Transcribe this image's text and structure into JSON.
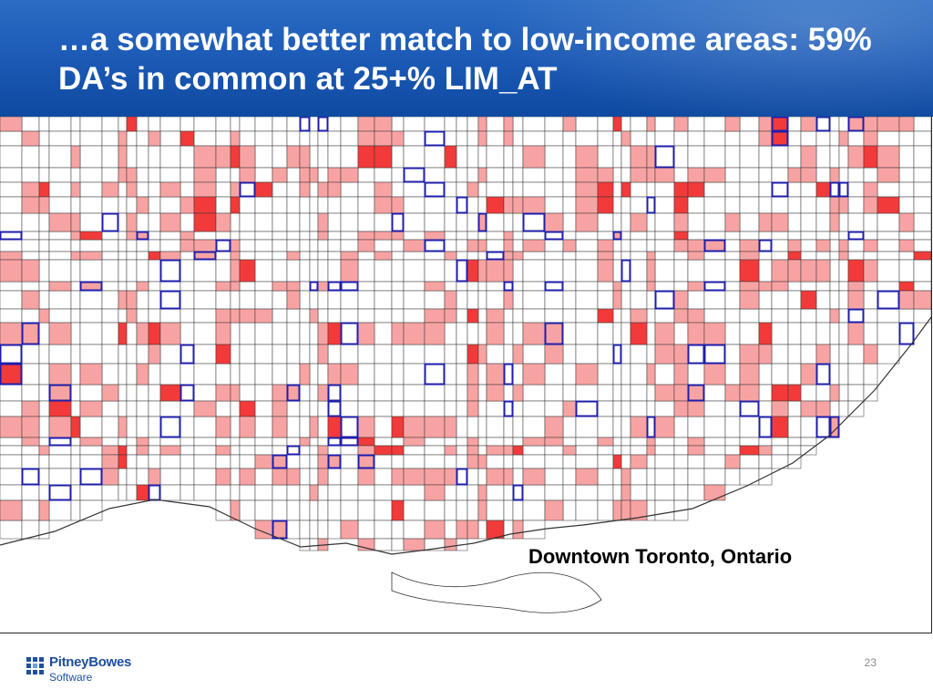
{
  "slide": {
    "title": "…a somewhat better match to low-income areas: 59% DA’s in common at 25+% LIM_AT",
    "map_caption": "Downtown Toronto, Ontario",
    "page_number": "23"
  },
  "logo": {
    "brand": "PitneyBowes",
    "sub": "Software"
  },
  "map": {
    "colors": {
      "light_fill": "#f8a3a3",
      "dark_fill": "#f23a3a",
      "outline": "#1d1da8",
      "boundary": "#333333",
      "background": "#ffffff"
    }
  }
}
